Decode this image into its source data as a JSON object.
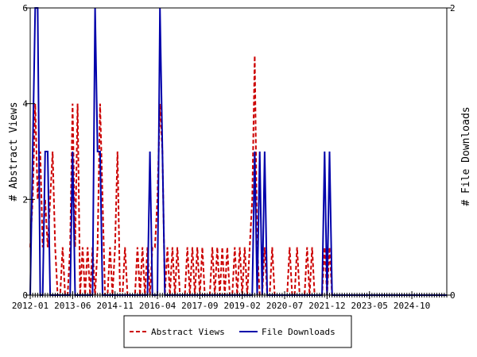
{
  "chart_data": {
    "type": "line",
    "title": "",
    "x_tick_labels": [
      "2012-01",
      "2013-06",
      "2014-11",
      "2016-04",
      "2017-09",
      "2019-02",
      "2020-07",
      "2021-12",
      "2023-05",
      "2024-10"
    ],
    "x_start": "2012-01",
    "x_end": "2025-12",
    "y_left": {
      "label": "# Abstract Views",
      "ticks": [
        "0",
        "2",
        "4",
        "6"
      ],
      "range": [
        0,
        6
      ]
    },
    "y_right": {
      "label": "# File Downloads",
      "ticks": [
        "0",
        "2"
      ],
      "range": [
        0,
        2
      ]
    },
    "grid": false,
    "legend_position": "bottom-center",
    "series": [
      {
        "name": "Abstract Views",
        "axis": "left",
        "color": "#cc0000",
        "dash": "dashed",
        "values": [
          1,
          2,
          4,
          2,
          3,
          1,
          2,
          1,
          2,
          3,
          1,
          0,
          0,
          1,
          0,
          0,
          1,
          4,
          1,
          4,
          0,
          1,
          0,
          1,
          0,
          1,
          0,
          1,
          4,
          2,
          0,
          0,
          1,
          0,
          1,
          3,
          0,
          0,
          1,
          0,
          0,
          0,
          0,
          1,
          0,
          1,
          0,
          1,
          0,
          1,
          1,
          2,
          4,
          3,
          0,
          1,
          0,
          1,
          0,
          1,
          0,
          0,
          0,
          1,
          0,
          1,
          0,
          1,
          0,
          1,
          0,
          0,
          0,
          1,
          0,
          1,
          0,
          1,
          0,
          1,
          0,
          0,
          1,
          0,
          1,
          0,
          1,
          0,
          1,
          2,
          5,
          1,
          0,
          0,
          1,
          0,
          0,
          1,
          0,
          0,
          0,
          0,
          0,
          0,
          1,
          0,
          0,
          1,
          0,
          0,
          0,
          1,
          0,
          1,
          0,
          0,
          0,
          0,
          1,
          0,
          1,
          0,
          0,
          0,
          0,
          0,
          0,
          0,
          0,
          0,
          0,
          0,
          0,
          0,
          0,
          0,
          0,
          0,
          0,
          0,
          0,
          0,
          0,
          0,
          0,
          0,
          0,
          0,
          0,
          0,
          0,
          0,
          0,
          0,
          0,
          0,
          0,
          0,
          0,
          0,
          0,
          0,
          0,
          0,
          0,
          0,
          0,
          0
        ]
      },
      {
        "name": "File Downloads",
        "axis": "right",
        "color": "#0000aa",
        "dash": "solid",
        "values": [
          0,
          1,
          2,
          2,
          0,
          0,
          1,
          1,
          0,
          0,
          0,
          0,
          0,
          0,
          0,
          0,
          0,
          1,
          0,
          0,
          0,
          0,
          0,
          0,
          0,
          0,
          2,
          1,
          1,
          0,
          0,
          0,
          0,
          0,
          0,
          0,
          0,
          0,
          0,
          0,
          0,
          0,
          0,
          0,
          0,
          0,
          0,
          0,
          1,
          0,
          0,
          0,
          2,
          1,
          0,
          0,
          0,
          0,
          0,
          0,
          0,
          0,
          0,
          0,
          0,
          0,
          0,
          0,
          0,
          0,
          0,
          0,
          0,
          0,
          0,
          0,
          0,
          0,
          0,
          0,
          0,
          0,
          0,
          0,
          0,
          0,
          0,
          0,
          0,
          0,
          1,
          0,
          1,
          0,
          1,
          0,
          0,
          0,
          0,
          0,
          0,
          0,
          0,
          0,
          0,
          0,
          0,
          0,
          0,
          0,
          0,
          0,
          0,
          0,
          0,
          0,
          0,
          0,
          1,
          0,
          1,
          0,
          0,
          0,
          0,
          0,
          0,
          0,
          0,
          0,
          0,
          0,
          0,
          0,
          0,
          0,
          0,
          0,
          0,
          0,
          0,
          0,
          0,
          0,
          0,
          0,
          0,
          0,
          0,
          0,
          0,
          0,
          0,
          0,
          0,
          0,
          0,
          0,
          0,
          0,
          0,
          0,
          0,
          0,
          0,
          0,
          0,
          0
        ]
      }
    ]
  }
}
